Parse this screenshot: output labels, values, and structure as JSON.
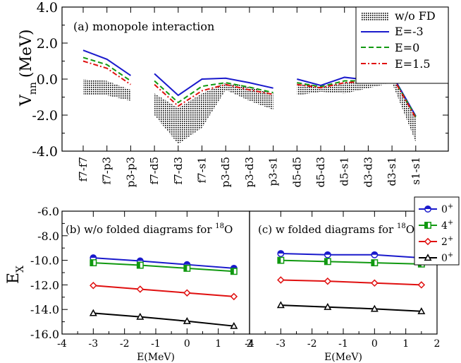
{
  "colors": {
    "blue": "#1a1acc",
    "green": "#119911",
    "red": "#e01010",
    "black": "#000000"
  },
  "chart_data": [
    {
      "type": "line",
      "panel_label": "(a) monopole interaction",
      "ylabel_main": "V",
      "ylabel_sub": "nn",
      "ylabel_unit": "(MeV)",
      "ylim": [
        -4.0,
        4.0
      ],
      "yticks": [
        "-4.0",
        "-2.0",
        "0.0",
        "2.0",
        "4.0"
      ],
      "yticks_values": [
        -4,
        -2,
        0,
        2,
        4
      ],
      "categories": [
        "f7-f7",
        "f7-p3",
        "p3-p3",
        "f7-d5",
        "f7-d3",
        "f7-s1",
        "p3-d5",
        "p3-d3",
        "p3-s1",
        "d5-d5",
        "d5-d3",
        "d5-s1",
        "d3-d3",
        "d3-s1",
        "s1-s1"
      ],
      "groups": [
        [
          0,
          1,
          2
        ],
        [
          3,
          4,
          5,
          6,
          7,
          8
        ],
        [
          9,
          10,
          11,
          12,
          13,
          14
        ]
      ],
      "legend": {
        "wofd": "w/o FD",
        "e1": "E=-3",
        "e2": "E=0",
        "e3": "E=1.5"
      },
      "series": [
        {
          "name": "E=-3",
          "style": "solid",
          "color": "#1a1acc",
          "values": [
            1.6,
            1.1,
            0.2,
            0.3,
            -0.9,
            0.0,
            0.05,
            -0.2,
            -0.5,
            0.0,
            -0.35,
            0.1,
            -0.05,
            0.25,
            -2.05
          ]
        },
        {
          "name": "E=0",
          "style": "dash",
          "color": "#119911",
          "values": [
            1.2,
            0.8,
            -0.1,
            -0.1,
            -1.3,
            -0.4,
            -0.2,
            -0.45,
            -0.75,
            -0.2,
            -0.42,
            -0.1,
            -0.1,
            0.2,
            -2.1
          ]
        },
        {
          "name": "E=1.5",
          "style": "dashdot",
          "color": "#e01010",
          "values": [
            1.0,
            0.6,
            -0.3,
            -0.3,
            -1.5,
            -0.65,
            -0.3,
            -0.6,
            -0.85,
            -0.3,
            -0.48,
            -0.2,
            -0.12,
            0.15,
            -2.15
          ]
        }
      ],
      "band_wofd": {
        "upper": [
          0.0,
          -0.1,
          -0.6,
          -0.8,
          -1.6,
          -0.8,
          -0.2,
          -0.4,
          -0.8,
          -0.2,
          -0.4,
          -0.2,
          -0.1,
          0.2,
          -2.0
        ],
        "lower": [
          -0.9,
          -0.9,
          -1.2,
          -2.0,
          -3.6,
          -2.7,
          -0.6,
          -1.2,
          -1.7,
          -0.9,
          -0.7,
          -0.8,
          -0.5,
          -0.2,
          -3.5
        ]
      }
    },
    {
      "type": "line",
      "title_prefix": "(b) w/o folded diagrams for ",
      "title_sup": "18",
      "title_suffix": "O",
      "ylabel_main": "E",
      "ylabel_sub": "X",
      "xlabel": "E(MeV)",
      "xlim": [
        -4,
        2
      ],
      "xticks": [
        "-4",
        "-3",
        "-2",
        "-1",
        "0",
        "1",
        "2"
      ],
      "xticks_values": [
        -4,
        -3,
        -2,
        -1,
        0,
        1,
        2
      ],
      "ylim": [
        -16,
        -6
      ],
      "yticks": [
        "-16.0",
        "-14.0",
        "-12.0",
        "-10.0",
        "-8.0",
        "-6.0"
      ],
      "yticks_values": [
        -16,
        -14,
        -12,
        -10,
        -8,
        -6
      ],
      "x": [
        -3,
        -1.5,
        0,
        1.5
      ],
      "series": [
        {
          "name": "0+",
          "color": "#1a1acc",
          "marker": "circle",
          "values": [
            -9.8,
            -10.05,
            -10.35,
            -10.65
          ]
        },
        {
          "name": "4+",
          "color": "#119911",
          "marker": "square",
          "values": [
            -10.2,
            -10.4,
            -10.65,
            -10.9
          ]
        },
        {
          "name": "2+",
          "color": "#e01010",
          "marker": "diamond",
          "values": [
            -12.05,
            -12.35,
            -12.65,
            -12.95
          ]
        },
        {
          "name": "0+",
          "color": "#000000",
          "marker": "triangle",
          "values": [
            -14.3,
            -14.6,
            -14.95,
            -15.35
          ]
        }
      ]
    },
    {
      "type": "line",
      "title_prefix": "(c) w folded diagrams for ",
      "title_sup": "18",
      "title_suffix": "O",
      "xlabel": "E(MeV)",
      "xlim": [
        -4,
        2
      ],
      "xticks": [
        "-4",
        "-3",
        "-2",
        "-1",
        "0",
        "1",
        "2"
      ],
      "xticks_values": [
        -4,
        -3,
        -2,
        -1,
        0,
        1,
        2
      ],
      "ylim": [
        -16,
        -6
      ],
      "x": [
        -3,
        -1.5,
        0,
        1.5
      ],
      "legend": [
        {
          "label": "0",
          "sup": "+",
          "color": "#1a1acc",
          "marker": "circle"
        },
        {
          "label": "4",
          "sup": "+",
          "color": "#119911",
          "marker": "square"
        },
        {
          "label": "2",
          "sup": "+",
          "color": "#e01010",
          "marker": "diamond"
        },
        {
          "label": "0",
          "sup": "+",
          "color": "#000000",
          "marker": "triangle"
        }
      ],
      "series": [
        {
          "name": "0+",
          "color": "#1a1acc",
          "marker": "circle",
          "values": [
            -9.45,
            -9.55,
            -9.55,
            -9.8
          ]
        },
        {
          "name": "4+",
          "color": "#119911",
          "marker": "square",
          "values": [
            -10.0,
            -10.1,
            -10.2,
            -10.3
          ]
        },
        {
          "name": "2+",
          "color": "#e01010",
          "marker": "diamond",
          "values": [
            -11.6,
            -11.7,
            -11.85,
            -12.0
          ]
        },
        {
          "name": "0+",
          "color": "#000000",
          "marker": "triangle",
          "values": [
            -13.65,
            -13.8,
            -13.95,
            -14.15
          ]
        }
      ]
    }
  ]
}
